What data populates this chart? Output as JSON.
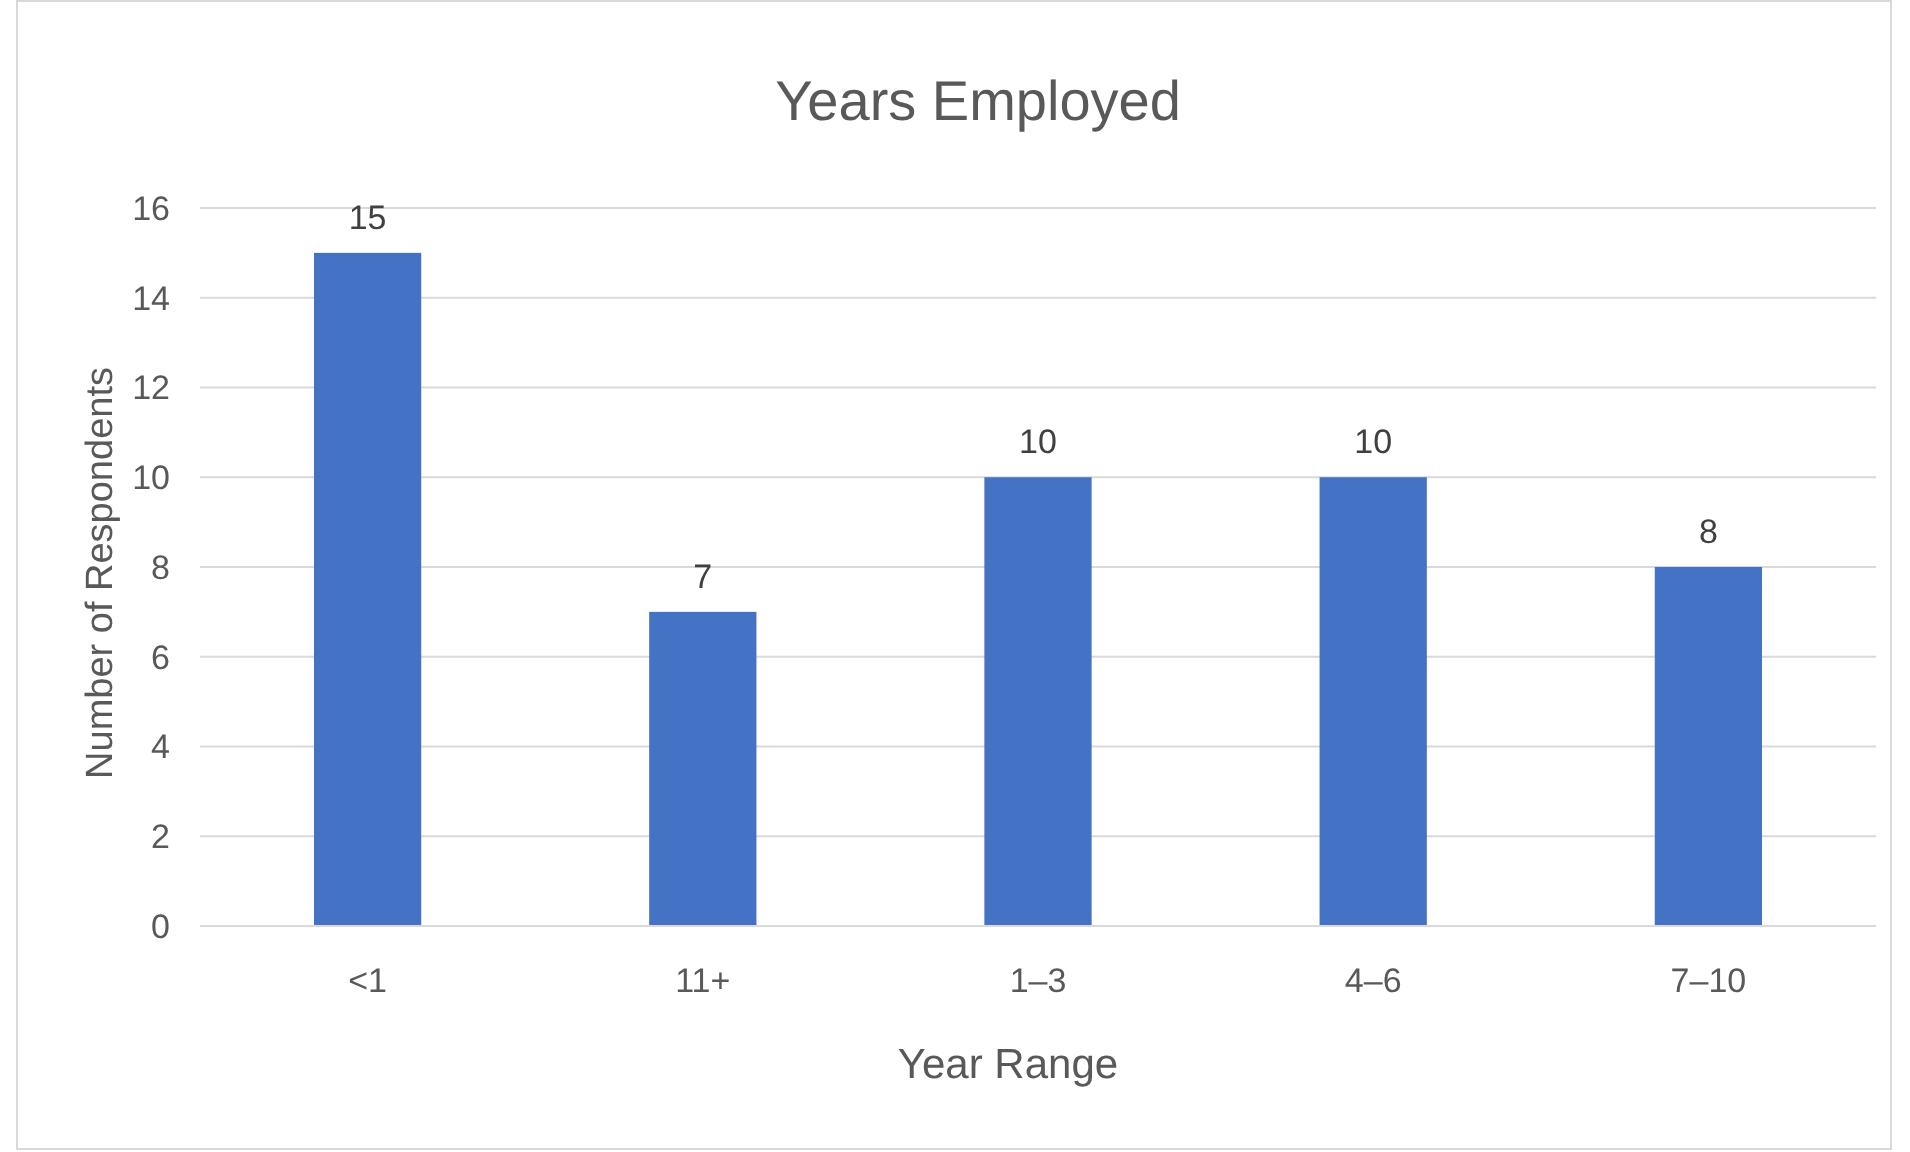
{
  "chart_data": {
    "type": "bar",
    "title": "Years Employed",
    "xlabel": "Year Range",
    "ylabel": "Number of Respondents",
    "categories": [
      "<1",
      "11+",
      "1–3",
      "4–6",
      "7–10"
    ],
    "values": [
      15,
      7,
      10,
      10,
      8
    ],
    "color": "#4472c4",
    "ylim": [
      0,
      16
    ],
    "yticks": [
      0,
      2,
      4,
      6,
      8,
      10,
      12,
      14,
      16
    ],
    "grid": "y",
    "data_labels": true
  }
}
